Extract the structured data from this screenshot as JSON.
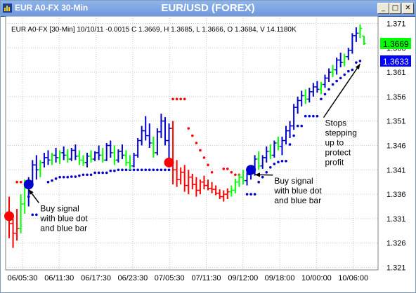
{
  "window": {
    "title": "EUR A0-FX 30-Min",
    "center_title": "EUR/USD (FOREX)",
    "buttons": {
      "minimize": "_",
      "maximize": "□",
      "close": "✕"
    }
  },
  "chart_data": {
    "type": "ohlc",
    "info_line": "EUR A0-FX [30-Min] 10/10/11  -0.0015 C 1.3669, H 1.3685, L 1.3666, O 1.3684, V 14.1180K",
    "x_ticks": [
      "06/05:30",
      "06/11:30",
      "06/17:30",
      "06/23:30",
      "07/05:30",
      "07/11:30",
      "09/12:00",
      "09/18:00",
      "10/00:00",
      "10/06:00"
    ],
    "y_ticks": [
      1.371,
      1.366,
      1.361,
      1.356,
      1.351,
      1.346,
      1.341,
      1.336,
      1.331,
      1.326,
      1.321
    ],
    "ylim": [
      1.3205,
      1.3725
    ],
    "last_price": {
      "label": "1.3669",
      "value": 1.3669,
      "color": "#00ff00"
    },
    "stop_price": {
      "label": "1.3633",
      "value": 1.3633,
      "color": "#0000ff"
    },
    "colors": {
      "up": "#0000cc",
      "down": "#ff0000",
      "neutral": "#00ff00",
      "grid": "#c8c8c8"
    },
    "bars": [
      {
        "o": 1.332,
        "h": 1.3355,
        "l": 1.327,
        "c": 1.33,
        "col": "red"
      },
      {
        "o": 1.33,
        "h": 1.331,
        "l": 1.325,
        "c": 1.328,
        "col": "red"
      },
      {
        "o": 1.328,
        "h": 1.333,
        "l": 1.3265,
        "c": 1.329,
        "col": "red"
      },
      {
        "o": 1.329,
        "h": 1.336,
        "l": 1.328,
        "c": 1.334,
        "col": "green"
      },
      {
        "o": 1.334,
        "h": 1.339,
        "l": 1.332,
        "c": 1.3375,
        "col": "green"
      },
      {
        "o": 1.3375,
        "h": 1.3395,
        "l": 1.3335,
        "c": 1.3385,
        "col": "blue"
      },
      {
        "o": 1.3385,
        "h": 1.343,
        "l": 1.338,
        "c": 1.342,
        "col": "blue"
      },
      {
        "o": 1.342,
        "h": 1.344,
        "l": 1.339,
        "c": 1.341,
        "col": "blue"
      },
      {
        "o": 1.341,
        "h": 1.343,
        "l": 1.3395,
        "c": 1.3425,
        "col": "green"
      },
      {
        "o": 1.3425,
        "h": 1.3445,
        "l": 1.3415,
        "c": 1.3435,
        "col": "blue"
      },
      {
        "o": 1.3435,
        "h": 1.345,
        "l": 1.342,
        "c": 1.343,
        "col": "blue"
      },
      {
        "o": 1.343,
        "h": 1.3445,
        "l": 1.342,
        "c": 1.344,
        "col": "green"
      },
      {
        "o": 1.344,
        "h": 1.3455,
        "l": 1.3425,
        "c": 1.3435,
        "col": "blue"
      },
      {
        "o": 1.3435,
        "h": 1.345,
        "l": 1.3422,
        "c": 1.3445,
        "col": "green"
      },
      {
        "o": 1.3445,
        "h": 1.3458,
        "l": 1.343,
        "c": 1.344,
        "col": "blue"
      },
      {
        "o": 1.344,
        "h": 1.3452,
        "l": 1.3425,
        "c": 1.3432,
        "col": "green"
      },
      {
        "o": 1.3432,
        "h": 1.3455,
        "l": 1.3428,
        "c": 1.345,
        "col": "blue"
      },
      {
        "o": 1.345,
        "h": 1.3462,
        "l": 1.343,
        "c": 1.3438,
        "col": "blue"
      },
      {
        "o": 1.3438,
        "h": 1.345,
        "l": 1.342,
        "c": 1.343,
        "col": "green"
      },
      {
        "o": 1.343,
        "h": 1.344,
        "l": 1.3418,
        "c": 1.3425,
        "col": "green"
      },
      {
        "o": 1.3425,
        "h": 1.3445,
        "l": 1.3415,
        "c": 1.3438,
        "col": "blue"
      },
      {
        "o": 1.3438,
        "h": 1.345,
        "l": 1.3425,
        "c": 1.3432,
        "col": "green"
      },
      {
        "o": 1.3432,
        "h": 1.3448,
        "l": 1.3428,
        "c": 1.3445,
        "col": "blue"
      },
      {
        "o": 1.3445,
        "h": 1.346,
        "l": 1.343,
        "c": 1.344,
        "col": "blue"
      },
      {
        "o": 1.344,
        "h": 1.3455,
        "l": 1.3425,
        "c": 1.343,
        "col": "green"
      },
      {
        "o": 1.343,
        "h": 1.3465,
        "l": 1.3428,
        "c": 1.346,
        "col": "blue"
      },
      {
        "o": 1.346,
        "h": 1.347,
        "l": 1.3435,
        "c": 1.3445,
        "col": "blue"
      },
      {
        "o": 1.3445,
        "h": 1.346,
        "l": 1.342,
        "c": 1.343,
        "col": "green"
      },
      {
        "o": 1.343,
        "h": 1.3452,
        "l": 1.3425,
        "c": 1.3448,
        "col": "blue"
      },
      {
        "o": 1.3448,
        "h": 1.3462,
        "l": 1.3432,
        "c": 1.344,
        "col": "blue"
      },
      {
        "o": 1.344,
        "h": 1.345,
        "l": 1.3418,
        "c": 1.3425,
        "col": "green"
      },
      {
        "o": 1.3425,
        "h": 1.344,
        "l": 1.341,
        "c": 1.3418,
        "col": "green"
      },
      {
        "o": 1.3418,
        "h": 1.3445,
        "l": 1.3415,
        "c": 1.344,
        "col": "blue"
      },
      {
        "o": 1.344,
        "h": 1.3475,
        "l": 1.3435,
        "c": 1.347,
        "col": "blue"
      },
      {
        "o": 1.347,
        "h": 1.35,
        "l": 1.346,
        "c": 1.349,
        "col": "blue"
      },
      {
        "o": 1.349,
        "h": 1.352,
        "l": 1.347,
        "c": 1.348,
        "col": "blue"
      },
      {
        "o": 1.348,
        "h": 1.3505,
        "l": 1.3455,
        "c": 1.3465,
        "col": "blue"
      },
      {
        "o": 1.3465,
        "h": 1.3478,
        "l": 1.3435,
        "c": 1.3445,
        "col": "green"
      },
      {
        "o": 1.3445,
        "h": 1.3495,
        "l": 1.344,
        "c": 1.3488,
        "col": "blue"
      },
      {
        "o": 1.3488,
        "h": 1.3525,
        "l": 1.3475,
        "c": 1.351,
        "col": "blue"
      },
      {
        "o": 1.351,
        "h": 1.3518,
        "l": 1.346,
        "c": 1.347,
        "col": "blue"
      },
      {
        "o": 1.347,
        "h": 1.3505,
        "l": 1.342,
        "c": 1.3495,
        "col": "blue"
      },
      {
        "o": 1.3495,
        "h": 1.351,
        "l": 1.338,
        "c": 1.341,
        "col": "red"
      },
      {
        "o": 1.341,
        "h": 1.343,
        "l": 1.3375,
        "c": 1.339,
        "col": "red"
      },
      {
        "o": 1.339,
        "h": 1.3415,
        "l": 1.338,
        "c": 1.3405,
        "col": "red"
      },
      {
        "o": 1.3405,
        "h": 1.342,
        "l": 1.3365,
        "c": 1.3378,
        "col": "red"
      },
      {
        "o": 1.3378,
        "h": 1.341,
        "l": 1.336,
        "c": 1.3395,
        "col": "red"
      },
      {
        "o": 1.3395,
        "h": 1.3402,
        "l": 1.337,
        "c": 1.338,
        "col": "red"
      },
      {
        "o": 1.338,
        "h": 1.3395,
        "l": 1.3355,
        "c": 1.3368,
        "col": "red"
      },
      {
        "o": 1.3368,
        "h": 1.339,
        "l": 1.336,
        "c": 1.3385,
        "col": "red"
      },
      {
        "o": 1.3385,
        "h": 1.3398,
        "l": 1.337,
        "c": 1.3378,
        "col": "red"
      },
      {
        "o": 1.3378,
        "h": 1.339,
        "l": 1.3368,
        "c": 1.3372,
        "col": "red"
      },
      {
        "o": 1.3372,
        "h": 1.3385,
        "l": 1.3362,
        "c": 1.337,
        "col": "red"
      },
      {
        "o": 1.337,
        "h": 1.3378,
        "l": 1.3358,
        "c": 1.3362,
        "col": "red"
      },
      {
        "o": 1.3362,
        "h": 1.337,
        "l": 1.335,
        "c": 1.3355,
        "col": "red"
      },
      {
        "o": 1.3355,
        "h": 1.3368,
        "l": 1.3345,
        "c": 1.336,
        "col": "red"
      },
      {
        "o": 1.336,
        "h": 1.3372,
        "l": 1.335,
        "c": 1.3365,
        "col": "red"
      },
      {
        "o": 1.3365,
        "h": 1.3378,
        "l": 1.3355,
        "c": 1.3368,
        "col": "green"
      },
      {
        "o": 1.3368,
        "h": 1.3392,
        "l": 1.3362,
        "c": 1.3385,
        "col": "green"
      },
      {
        "o": 1.3385,
        "h": 1.3402,
        "l": 1.3375,
        "c": 1.3395,
        "col": "green"
      },
      {
        "o": 1.3395,
        "h": 1.341,
        "l": 1.338,
        "c": 1.3388,
        "col": "green"
      },
      {
        "o": 1.3388,
        "h": 1.3405,
        "l": 1.3378,
        "c": 1.34,
        "col": "blue"
      },
      {
        "o": 1.34,
        "h": 1.3415,
        "l": 1.339,
        "c": 1.341,
        "col": "blue"
      },
      {
        "o": 1.341,
        "h": 1.344,
        "l": 1.3398,
        "c": 1.3432,
        "col": "blue"
      },
      {
        "o": 1.3432,
        "h": 1.3448,
        "l": 1.341,
        "c": 1.3418,
        "col": "green"
      },
      {
        "o": 1.3418,
        "h": 1.344,
        "l": 1.3412,
        "c": 1.3435,
        "col": "blue"
      },
      {
        "o": 1.3435,
        "h": 1.3458,
        "l": 1.3425,
        "c": 1.3448,
        "col": "blue"
      },
      {
        "o": 1.3448,
        "h": 1.3462,
        "l": 1.3432,
        "c": 1.344,
        "col": "green"
      },
      {
        "o": 1.344,
        "h": 1.347,
        "l": 1.3435,
        "c": 1.3465,
        "col": "blue"
      },
      {
        "o": 1.3465,
        "h": 1.3478,
        "l": 1.345,
        "c": 1.3458,
        "col": "green"
      },
      {
        "o": 1.3458,
        "h": 1.3478,
        "l": 1.344,
        "c": 1.347,
        "col": "blue"
      },
      {
        "o": 1.347,
        "h": 1.35,
        "l": 1.3462,
        "c": 1.349,
        "col": "blue"
      },
      {
        "o": 1.349,
        "h": 1.351,
        "l": 1.3475,
        "c": 1.35,
        "col": "blue"
      },
      {
        "o": 1.35,
        "h": 1.3545,
        "l": 1.3492,
        "c": 1.3538,
        "col": "blue"
      },
      {
        "o": 1.3538,
        "h": 1.356,
        "l": 1.3525,
        "c": 1.3552,
        "col": "blue"
      },
      {
        "o": 1.3552,
        "h": 1.3572,
        "l": 1.354,
        "c": 1.3562,
        "col": "blue"
      },
      {
        "o": 1.3562,
        "h": 1.3575,
        "l": 1.3545,
        "c": 1.3555,
        "col": "green"
      },
      {
        "o": 1.3555,
        "h": 1.3578,
        "l": 1.3548,
        "c": 1.357,
        "col": "blue"
      },
      {
        "o": 1.357,
        "h": 1.3588,
        "l": 1.356,
        "c": 1.358,
        "col": "blue"
      },
      {
        "o": 1.358,
        "h": 1.3592,
        "l": 1.3568,
        "c": 1.3575,
        "col": "blue"
      },
      {
        "o": 1.3575,
        "h": 1.359,
        "l": 1.3565,
        "c": 1.3585,
        "col": "green"
      },
      {
        "o": 1.3585,
        "h": 1.3605,
        "l": 1.3578,
        "c": 1.3598,
        "col": "blue"
      },
      {
        "o": 1.3598,
        "h": 1.3618,
        "l": 1.359,
        "c": 1.361,
        "col": "blue"
      },
      {
        "o": 1.361,
        "h": 1.3625,
        "l": 1.36,
        "c": 1.3615,
        "col": "green"
      },
      {
        "o": 1.3615,
        "h": 1.364,
        "l": 1.3605,
        "c": 1.3635,
        "col": "blue"
      },
      {
        "o": 1.3635,
        "h": 1.365,
        "l": 1.362,
        "c": 1.363,
        "col": "blue"
      },
      {
        "o": 1.363,
        "h": 1.3648,
        "l": 1.3622,
        "c": 1.3642,
        "col": "green"
      },
      {
        "o": 1.3642,
        "h": 1.366,
        "l": 1.3635,
        "c": 1.3655,
        "col": "blue"
      },
      {
        "o": 1.3655,
        "h": 1.369,
        "l": 1.3648,
        "c": 1.3685,
        "col": "blue"
      },
      {
        "o": 1.3685,
        "h": 1.3702,
        "l": 1.3672,
        "c": 1.369,
        "col": "blue"
      },
      {
        "o": 1.369,
        "h": 1.3708,
        "l": 1.368,
        "c": 1.37,
        "col": "green"
      },
      {
        "o": 1.3684,
        "h": 1.3685,
        "l": 1.3666,
        "c": 1.3669,
        "col": "green"
      }
    ],
    "stops": [
      {
        "i": 2,
        "v": 1.3385,
        "col": "red"
      },
      {
        "i": 3,
        "v": 1.3385,
        "col": "red"
      },
      {
        "i": 5,
        "v": 1.3355,
        "col": "blue"
      },
      {
        "i": 6,
        "v": 1.3318,
        "col": "blue"
      },
      {
        "i": 7,
        "v": 1.3318,
        "col": "blue"
      },
      {
        "i": 10,
        "v": 1.3385,
        "col": "blue"
      },
      {
        "i": 11,
        "v": 1.3388,
        "col": "blue"
      },
      {
        "i": 12,
        "v": 1.3392,
        "col": "blue"
      },
      {
        "i": 13,
        "v": 1.3395,
        "col": "blue"
      },
      {
        "i": 14,
        "v": 1.3395,
        "col": "blue"
      },
      {
        "i": 15,
        "v": 1.3395,
        "col": "blue"
      },
      {
        "i": 16,
        "v": 1.3396,
        "col": "blue"
      },
      {
        "i": 17,
        "v": 1.3396,
        "col": "blue"
      },
      {
        "i": 18,
        "v": 1.3398,
        "col": "blue"
      },
      {
        "i": 19,
        "v": 1.34,
        "col": "blue"
      },
      {
        "i": 20,
        "v": 1.34,
        "col": "blue"
      },
      {
        "i": 21,
        "v": 1.34,
        "col": "blue"
      },
      {
        "i": 22,
        "v": 1.3404,
        "col": "blue"
      },
      {
        "i": 23,
        "v": 1.3404,
        "col": "blue"
      },
      {
        "i": 24,
        "v": 1.3404,
        "col": "blue"
      },
      {
        "i": 25,
        "v": 1.3404,
        "col": "blue"
      },
      {
        "i": 26,
        "v": 1.3408,
        "col": "blue"
      },
      {
        "i": 27,
        "v": 1.3408,
        "col": "blue"
      },
      {
        "i": 28,
        "v": 1.341,
        "col": "blue"
      },
      {
        "i": 29,
        "v": 1.341,
        "col": "blue"
      },
      {
        "i": 30,
        "v": 1.341,
        "col": "blue"
      },
      {
        "i": 31,
        "v": 1.341,
        "col": "blue"
      },
      {
        "i": 32,
        "v": 1.341,
        "col": "blue"
      },
      {
        "i": 33,
        "v": 1.341,
        "col": "blue"
      },
      {
        "i": 34,
        "v": 1.341,
        "col": "blue"
      },
      {
        "i": 35,
        "v": 1.341,
        "col": "blue"
      },
      {
        "i": 36,
        "v": 1.341,
        "col": "blue"
      },
      {
        "i": 37,
        "v": 1.341,
        "col": "blue"
      },
      {
        "i": 38,
        "v": 1.341,
        "col": "blue"
      },
      {
        "i": 39,
        "v": 1.341,
        "col": "blue"
      },
      {
        "i": 40,
        "v": 1.341,
        "col": "blue"
      },
      {
        "i": 41,
        "v": 1.341,
        "col": "blue"
      },
      {
        "i": 42,
        "v": 1.3555,
        "col": "red"
      },
      {
        "i": 43,
        "v": 1.3555,
        "col": "red"
      },
      {
        "i": 44,
        "v": 1.3555,
        "col": "red"
      },
      {
        "i": 45,
        "v": 1.3555,
        "col": "red"
      },
      {
        "i": 46,
        "v": 1.3495,
        "col": "red"
      },
      {
        "i": 47,
        "v": 1.348,
        "col": "red"
      },
      {
        "i": 48,
        "v": 1.3465,
        "col": "red"
      },
      {
        "i": 49,
        "v": 1.345,
        "col": "red"
      },
      {
        "i": 50,
        "v": 1.3435,
        "col": "red"
      },
      {
        "i": 51,
        "v": 1.342,
        "col": "red"
      },
      {
        "i": 52,
        "v": 1.3405,
        "col": "red"
      },
      {
        "i": 55,
        "v": 1.3412,
        "col": "red"
      },
      {
        "i": 56,
        "v": 1.3412,
        "col": "red"
      },
      {
        "i": 57,
        "v": 1.3405,
        "col": "red"
      },
      {
        "i": 58,
        "v": 1.34,
        "col": "red"
      },
      {
        "i": 59,
        "v": 1.34,
        "col": "red"
      },
      {
        "i": 61,
        "v": 1.336,
        "col": "blue"
      },
      {
        "i": 62,
        "v": 1.336,
        "col": "blue"
      },
      {
        "i": 63,
        "v": 1.336,
        "col": "blue"
      },
      {
        "i": 64,
        "v": 1.3385,
        "col": "blue"
      },
      {
        "i": 65,
        "v": 1.3395,
        "col": "blue"
      },
      {
        "i": 66,
        "v": 1.3405,
        "col": "blue"
      },
      {
        "i": 67,
        "v": 1.3415,
        "col": "blue"
      },
      {
        "i": 68,
        "v": 1.3422,
        "col": "blue"
      },
      {
        "i": 69,
        "v": 1.3426,
        "col": "blue"
      },
      {
        "i": 70,
        "v": 1.3428,
        "col": "blue"
      },
      {
        "i": 71,
        "v": 1.3428,
        "col": "blue"
      },
      {
        "i": 72,
        "v": 1.3462,
        "col": "blue"
      },
      {
        "i": 73,
        "v": 1.348,
        "col": "blue"
      },
      {
        "i": 74,
        "v": 1.35,
        "col": "blue"
      },
      {
        "i": 75,
        "v": 1.35,
        "col": "blue"
      },
      {
        "i": 76,
        "v": 1.352,
        "col": "blue"
      },
      {
        "i": 77,
        "v": 1.352,
        "col": "blue"
      },
      {
        "i": 78,
        "v": 1.352,
        "col": "blue"
      },
      {
        "i": 79,
        "v": 1.352,
        "col": "blue"
      },
      {
        "i": 80,
        "v": 1.3555,
        "col": "blue"
      },
      {
        "i": 81,
        "v": 1.3565,
        "col": "blue"
      },
      {
        "i": 82,
        "v": 1.3575,
        "col": "blue"
      },
      {
        "i": 83,
        "v": 1.3585,
        "col": "blue"
      },
      {
        "i": 84,
        "v": 1.3592,
        "col": "blue"
      },
      {
        "i": 85,
        "v": 1.3598,
        "col": "blue"
      },
      {
        "i": 86,
        "v": 1.3605,
        "col": "blue"
      },
      {
        "i": 87,
        "v": 1.3612,
        "col": "blue"
      },
      {
        "i": 88,
        "v": 1.3615,
        "col": "blue"
      },
      {
        "i": 89,
        "v": 1.363,
        "col": "blue"
      },
      {
        "i": 90,
        "v": 1.3633,
        "col": "blue"
      }
    ],
    "signal_dots": [
      {
        "i": 0,
        "v": 1.3315,
        "col": "red"
      },
      {
        "i": 5,
        "v": 1.338,
        "col": "blue"
      },
      {
        "i": 41,
        "v": 1.3425,
        "col": "red"
      },
      {
        "i": 62,
        "v": 1.341,
        "col": "blue"
      }
    ],
    "annotations": [
      {
        "lines": [
          "Buy signal",
          "with blue dot",
          "and blue bar"
        ],
        "i": 8,
        "v": 1.3325,
        "arrow_to": {
          "i": 5,
          "v": 1.337
        }
      },
      {
        "lines": [
          "Buy signal",
          "with blue dot",
          "and blue bar"
        ],
        "i": 68,
        "v": 1.3382,
        "arrow_to": {
          "i": 63,
          "v": 1.34
        }
      },
      {
        "lines": [
          "Stops",
          "stepping",
          "up to",
          "protect",
          "profit"
        ],
        "i": 81,
        "v": 1.35,
        "arrow_to": {
          "i": 90,
          "v": 1.3627
        }
      }
    ]
  }
}
